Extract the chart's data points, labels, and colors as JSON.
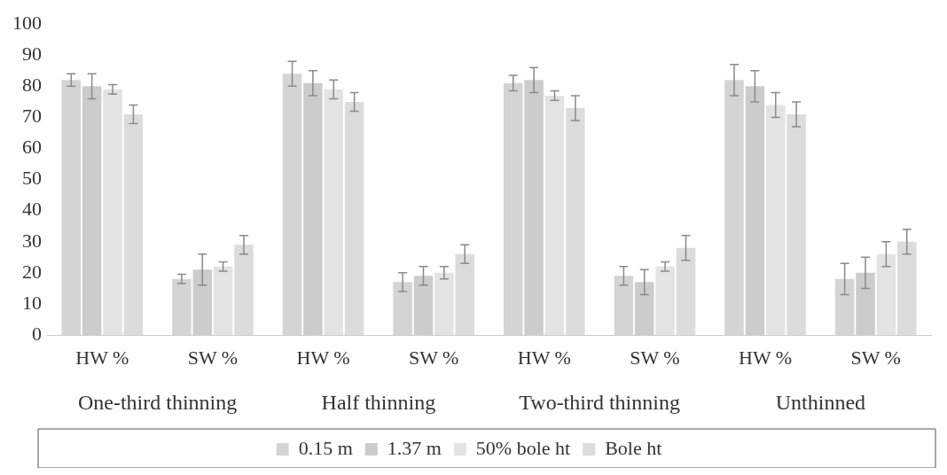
{
  "chart_data": {
    "type": "bar",
    "categories": [
      "HW %",
      "SW %",
      "HW %",
      "SW %",
      "HW %",
      "SW %",
      "HW %",
      "SW %"
    ],
    "annotations": [
      "One-third thinning",
      "Half thinning",
      "Two-third thinning",
      "Unthinned"
    ],
    "series": [
      {
        "name": "0.15 m",
        "color": "#d4d4d4",
        "values": [
          82,
          18,
          84,
          17,
          81,
          19,
          82,
          18
        ],
        "errors": [
          2,
          1.5,
          4,
          3,
          2.5,
          3,
          5,
          5
        ]
      },
      {
        "name": "1.37 m",
        "color": "#cccccc",
        "values": [
          80,
          21,
          81,
          19,
          82,
          17,
          80,
          20
        ],
        "errors": [
          4,
          5,
          4,
          3,
          4,
          4,
          5,
          5
        ]
      },
      {
        "name": "50% bole ht",
        "color": "#e3e3e3",
        "values": [
          79,
          22,
          79,
          20,
          77,
          22,
          74,
          26
        ],
        "errors": [
          1.5,
          1.5,
          3,
          2,
          1.5,
          1.5,
          4,
          4
        ]
      },
      {
        "name": "Bole ht",
        "color": "#dcdcdc",
        "values": [
          71,
          29,
          75,
          26,
          73,
          28,
          71,
          30
        ],
        "errors": [
          3,
          3,
          3,
          3,
          4,
          4,
          4,
          4
        ]
      }
    ],
    "ylim": [
      0,
      100
    ],
    "yticks": [
      0,
      10,
      20,
      30,
      40,
      50,
      60,
      70,
      80,
      90,
      100
    ],
    "grid": false,
    "legend": "bottom"
  }
}
